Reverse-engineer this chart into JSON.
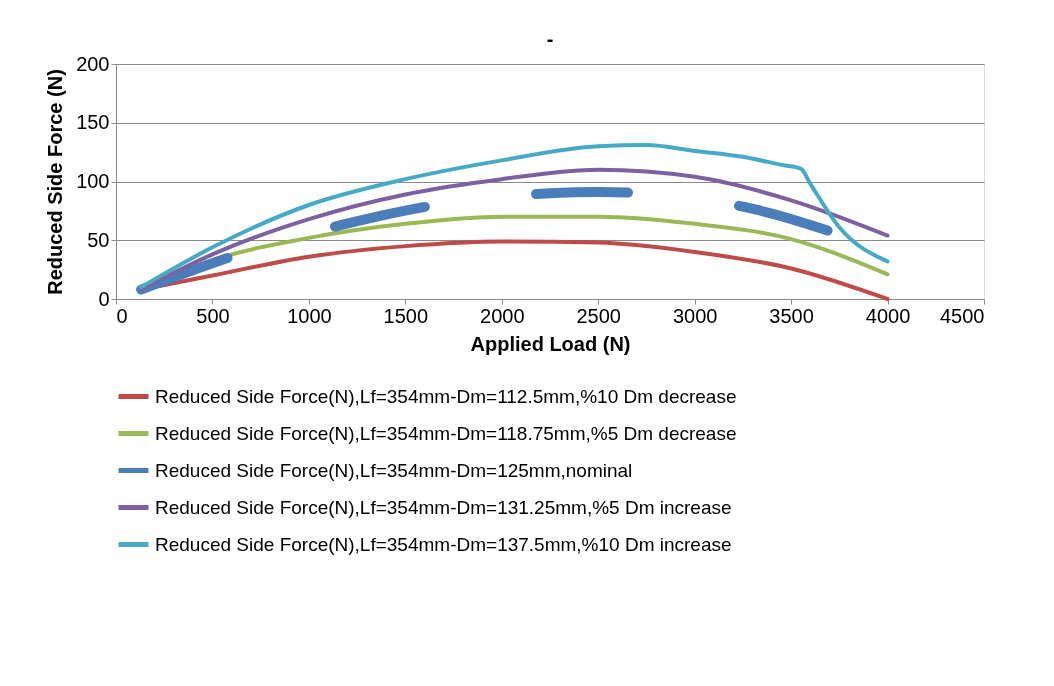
{
  "chart_data": {
    "type": "line",
    "title": "-",
    "xlabel": "Applied Load (N)",
    "ylabel": "Reduced Side Force (N)",
    "xlim": [
      0,
      4500
    ],
    "xticks": [
      0,
      500,
      1000,
      1500,
      2000,
      2500,
      3000,
      3500,
      4000,
      4500
    ],
    "ylim": [
      0,
      200
    ],
    "yticks": [
      0,
      50,
      100,
      150,
      200
    ],
    "grid": "y",
    "legend": "bottom",
    "marker": "none",
    "series": [
      {
        "name": "Reduced Side Force(N),Lf=354mm-Dm=112.5mm,%10 Dm decrease",
        "color": "#be4b48",
        "x": [
          130,
          500,
          1000,
          1500,
          2000,
          2500,
          3000,
          3500,
          4000
        ],
        "values": [
          8,
          20,
          36,
          45,
          49,
          48,
          40,
          26,
          0
        ]
      },
      {
        "name": "Reduced Side Force(N),Lf=354mm-Dm=118.75mm,%5 Dm decrease",
        "color": "#98b954",
        "x": [
          130,
          500,
          1000,
          1500,
          2000,
          2500,
          3000,
          3500,
          4000
        ],
        "values": [
          8,
          33,
          52,
          64,
          70,
          70,
          64,
          51,
          21
        ]
      },
      {
        "name": "Reduced Side Force(N),Lf=354mm-Dm=125mm,nominal",
        "color": "#4a7ebb",
        "line_style": "dashed",
        "x": [
          130,
          600,
          1170,
          1660,
          2250,
          2500,
          2740,
          3320,
          3800,
          4000
        ],
        "values": [
          8,
          36,
          63,
          80,
          90,
          91,
          90,
          76,
          52,
          40
        ]
      },
      {
        "name": "Reduced Side Force(N),Lf=354mm-Dm=131.25mm,%5 Dm increase",
        "color": "#7d60a0",
        "x": [
          130,
          500,
          1000,
          1500,
          2000,
          2500,
          3000,
          3500,
          4000
        ],
        "values": [
          8,
          38,
          68,
          89,
          102,
          110,
          104,
          84,
          54
        ]
      },
      {
        "name": "Reduced Side Force(N),Lf=354mm-Dm=137.5mm,%10 Dm increase",
        "color": "#46aac5",
        "x": [
          130,
          500,
          1000,
          1500,
          2000,
          2500,
          2750,
          3000,
          3250,
          3455,
          3550,
          3600,
          3750,
          4000
        ],
        "values": [
          10,
          44,
          80,
          102,
          118,
          130,
          131,
          126,
          121,
          114,
          111,
          98,
          61,
          32
        ]
      }
    ]
  }
}
